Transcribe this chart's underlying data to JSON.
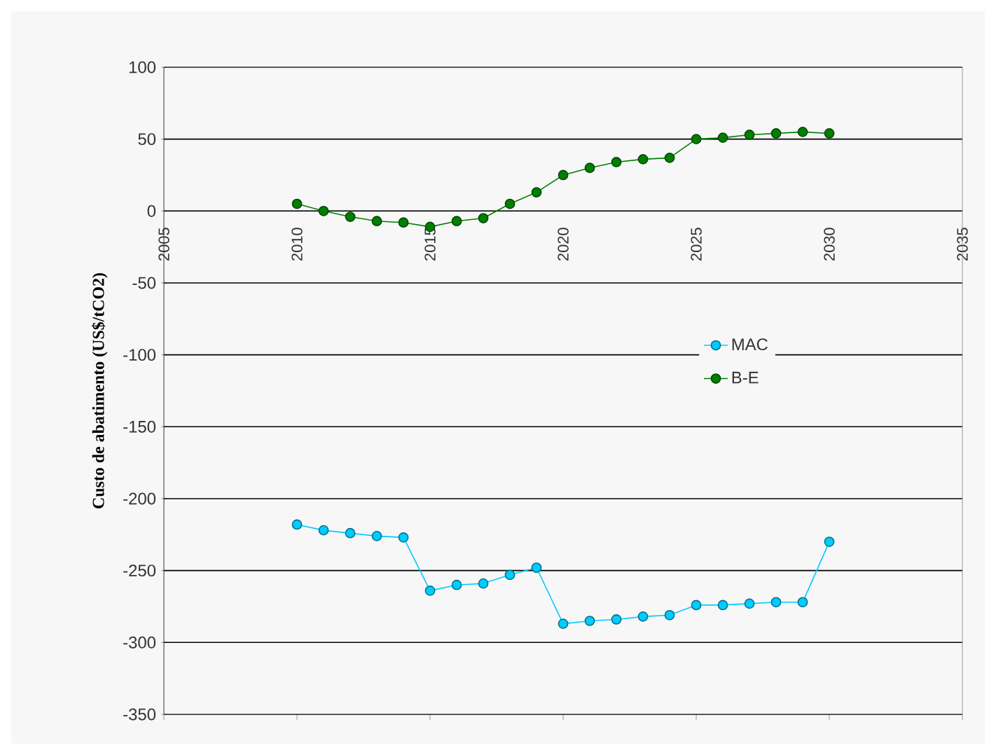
{
  "chart_data": {
    "type": "line",
    "ylabel": "Custo de abatimento (US$/tCO2)",
    "x": [
      2010,
      2011,
      2012,
      2013,
      2014,
      2015,
      2016,
      2017,
      2018,
      2019,
      2020,
      2021,
      2022,
      2023,
      2024,
      2025,
      2026,
      2027,
      2028,
      2029,
      2030
    ],
    "series": [
      {
        "name": "MAC",
        "color": "#00ccff",
        "values": [
          -218,
          -222,
          -224,
          -226,
          -227,
          -264,
          -260,
          -259,
          -253,
          -248,
          -287,
          -285,
          -284,
          -282,
          -281,
          -274,
          -274,
          -273,
          -272,
          -272,
          -230
        ]
      },
      {
        "name": "B-E",
        "color": "#008000",
        "values": [
          5,
          0,
          -4,
          -7,
          -8,
          -11,
          -7,
          -5,
          5,
          13,
          25,
          30,
          34,
          36,
          37,
          50,
          51,
          53,
          54,
          55,
          54
        ]
      }
    ],
    "xlim": [
      2005,
      2035
    ],
    "xticks": [
      2005,
      2010,
      2015,
      2020,
      2025,
      2030,
      2035
    ],
    "ylim": [
      -350,
      100
    ],
    "yticks": [
      -350,
      -300,
      -250,
      -200,
      -150,
      -100,
      -50,
      0,
      50,
      100
    ],
    "grid": "y",
    "legend": "right",
    "marker": "circle",
    "line_style": "solid"
  }
}
